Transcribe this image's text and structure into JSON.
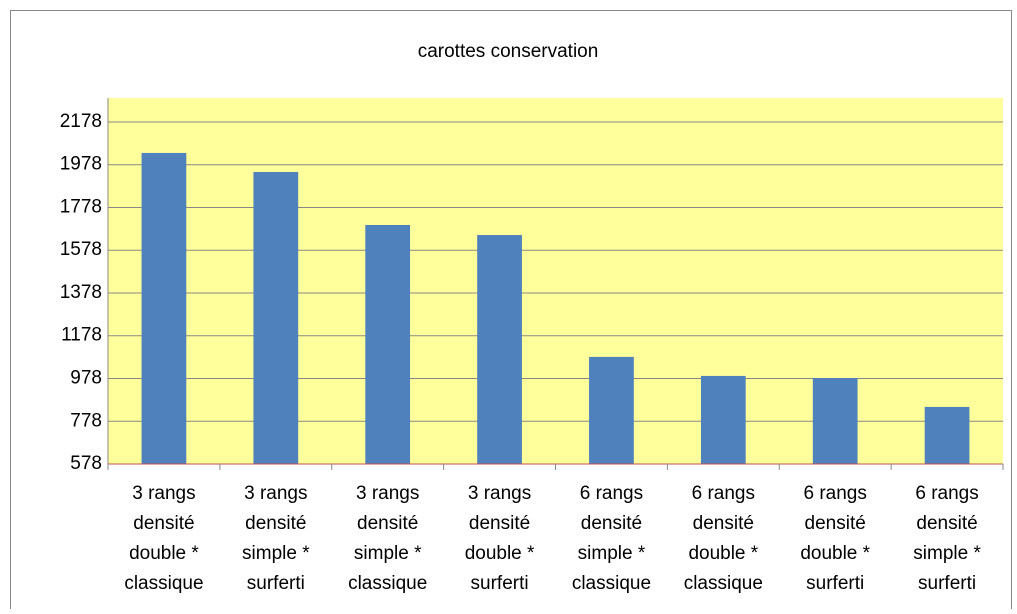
{
  "chart_data": {
    "type": "bar",
    "title": "carottes conservation",
    "categories": [
      [
        "3 rangs",
        "densité",
        "double *",
        "classique"
      ],
      [
        "3 rangs",
        "densité",
        "simple *",
        "surferti"
      ],
      [
        "3 rangs",
        "densité",
        "simple *",
        "classique"
      ],
      [
        "3 rangs",
        "densité",
        "double *",
        "surferti"
      ],
      [
        "6 rangs",
        "densité",
        "simple *",
        "classique"
      ],
      [
        "6 rangs",
        "densité",
        "double *",
        "classique"
      ],
      [
        "6 rangs",
        "densité",
        "double *",
        "surferti"
      ],
      [
        "6 rangs",
        "densité",
        "simple *",
        "surferti"
      ]
    ],
    "values": [
      2033,
      1944,
      1696,
      1649,
      1079,
      990,
      980,
      845
    ],
    "color": "#4f81bd",
    "ylim": [
      578,
      2290
    ],
    "yticks": [
      578,
      778,
      978,
      1178,
      1378,
      1578,
      1778,
      1978,
      2178
    ],
    "grid": true
  }
}
